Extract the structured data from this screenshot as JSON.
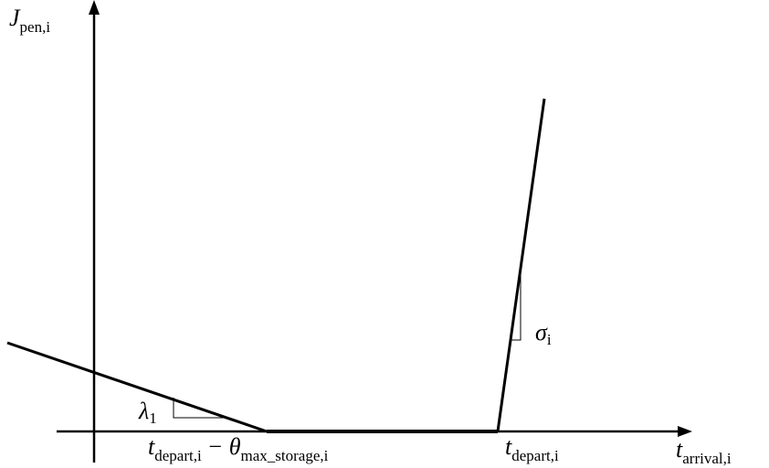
{
  "y_axis_label": {
    "base": "J",
    "sub": "pen,i"
  },
  "x_axis_label": {
    "base": "t",
    "sub": "arrival,i"
  },
  "slope_labels": [
    {
      "base": "λ",
      "sub": "1"
    },
    {
      "base": "σ",
      "sub": "i"
    }
  ],
  "x_labels": [
    {
      "segments": [
        {
          "base": "t",
          "sub": "depart,i"
        },
        {
          "base": "− θ",
          "sub": "max_storage,i"
        }
      ]
    },
    {
      "segments": [
        {
          "base": "t",
          "sub": "depart,i"
        }
      ]
    }
  ]
}
